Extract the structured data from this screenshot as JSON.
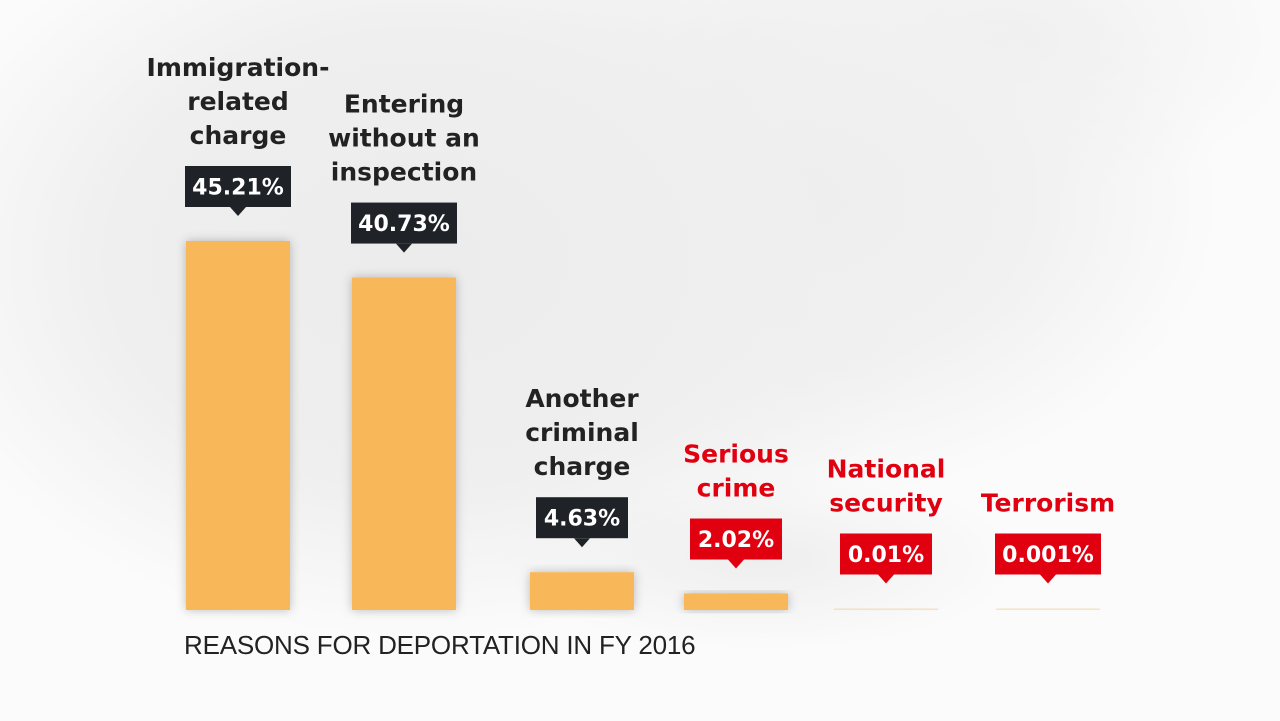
{
  "chart_data": {
    "type": "bar",
    "title": "REASONS FOR DEPORTATION IN FY 2016",
    "categories": [
      "Immigration-\nrelated\ncharge",
      "Entering\nwithout an\ninspection",
      "Another\ncriminal\ncharge",
      "Serious\ncrime",
      "National\nsecurity",
      "Terrorism"
    ],
    "values": [
      45.21,
      40.73,
      4.63,
      2.02,
      0.01,
      0.001
    ],
    "value_labels": [
      "45.21%",
      "40.73%",
      "4.63%",
      "2.02%",
      "0.01%",
      "0.001%"
    ],
    "highlighted": [
      false,
      false,
      false,
      true,
      true,
      true
    ],
    "ylim": [
      0,
      45.21
    ],
    "grid": false,
    "colors": {
      "bar": "#f8b85a",
      "label_default": "#1f2328",
      "label_highlight": "#e00010",
      "text_default": "#222222",
      "text_highlight": "#e00010"
    }
  }
}
